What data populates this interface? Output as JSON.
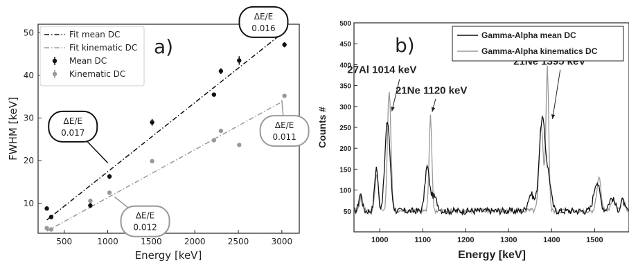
{
  "chart_data": [
    {
      "type": "scatter",
      "panel_label": "a)",
      "xlabel": "Energy [keV]",
      "ylabel": "FWHM [keV]",
      "xlim": [
        200,
        3200
      ],
      "ylim": [
        3,
        52
      ],
      "xticks": [
        500,
        1000,
        1500,
        2000,
        2500,
        3000
      ],
      "yticks": [
        10,
        20,
        30,
        40,
        50
      ],
      "colors": {
        "mean": "#111111",
        "kinematic": "#999999"
      },
      "fits": [
        {
          "name": "Fit mean DC",
          "style": "dashdot",
          "color": "#111111",
          "x": [
            300,
            3000
          ],
          "y": [
            6.1,
            49.8
          ]
        },
        {
          "name": "Fit kinematic DC",
          "style": "dashdot",
          "color": "#999999",
          "x": [
            300,
            3000
          ],
          "y": [
            3.5,
            33.8
          ]
        }
      ],
      "series": [
        {
          "name": "Mean DC",
          "color": "#111111",
          "x": [
            300,
            350,
            800,
            1020,
            1510,
            2220,
            2300,
            2510,
            3030
          ],
          "y": [
            8.8,
            6.8,
            9.5,
            16.3,
            29.0,
            35.5,
            41.0,
            43.5,
            47.2
          ],
          "yerr": [
            0.3,
            0.3,
            0.6,
            0.6,
            0.8,
            0.4,
            0.7,
            1.0,
            0.6
          ]
        },
        {
          "name": "Kinematic DC",
          "color": "#999999",
          "x": [
            300,
            350,
            800,
            1020,
            1510,
            2220,
            2300,
            2510,
            3030
          ],
          "y": [
            4.2,
            3.9,
            10.6,
            12.5,
            19.9,
            24.8,
            27.0,
            23.7,
            35.2
          ],
          "yerr": [
            0.2,
            0.2,
            0.3,
            0.3,
            0.3,
            0.3,
            0.3,
            0.3,
            0.3
          ]
        }
      ],
      "annotations": [
        {
          "line1": "ΔE/E",
          "line2": "0.016",
          "box_x": 2790,
          "box_y": 52.5,
          "arrow_to": [
            3000,
            49.8
          ],
          "border": "#111111"
        },
        {
          "line1": "ΔE/E",
          "line2": "0.017",
          "box_x": 600,
          "box_y": 28.0,
          "arrow_to": [
            1000,
            19.5
          ],
          "border": "#111111"
        },
        {
          "line1": "ΔE/E",
          "line2": "0.011",
          "box_x": 3030,
          "box_y": 27.0,
          "arrow_to": [
            3000,
            34.2
          ],
          "border": "#999999"
        },
        {
          "line1": "ΔE/E",
          "line2": "0.012",
          "box_x": 1430,
          "box_y": 5.8,
          "arrow_to": [
            1080,
            11.5
          ],
          "border": "#999999"
        }
      ]
    },
    {
      "type": "line",
      "panel_label": "b)",
      "xlabel": "Energy [keV]",
      "ylabel": "Counts #",
      "xlim": [
        940,
        1580
      ],
      "ylim": [
        0,
        500
      ],
      "xticks": [
        1000,
        1100,
        1200,
        1300,
        1400,
        1500
      ],
      "yticks": [
        50,
        100,
        150,
        200,
        250,
        300,
        350,
        400,
        450,
        500
      ],
      "baseline": 50,
      "series": [
        {
          "name": "Gamma-Alpha mean DC",
          "color": "#111111",
          "noise": 8,
          "peaks": [
            {
              "x": 955,
              "h": 40,
              "w": 4
            },
            {
              "x": 992,
              "h": 105,
              "w": 4
            },
            {
              "x": 1018,
              "h": 215,
              "w": 6
            },
            {
              "x": 1110,
              "h": 100,
              "w": 5
            },
            {
              "x": 1125,
              "h": 35,
              "w": 8
            },
            {
              "x": 1352,
              "h": 40,
              "w": 7
            },
            {
              "x": 1378,
              "h": 220,
              "w": 7
            },
            {
              "x": 1393,
              "h": 70,
              "w": 6
            },
            {
              "x": 1505,
              "h": 70,
              "w": 7
            },
            {
              "x": 1540,
              "h": 30,
              "w": 7
            },
            {
              "x": 1565,
              "h": 25,
              "w": 4
            }
          ]
        },
        {
          "name": "Gamma-Alpha kinematics DC",
          "color": "#999999",
          "noise": 6,
          "peaks": [
            {
              "x": 957,
              "h": 35,
              "w": 4
            },
            {
              "x": 993,
              "h": 90,
              "w": 4
            },
            {
              "x": 1022,
              "h": 290,
              "w": 4
            },
            {
              "x": 1118,
              "h": 230,
              "w": 3.2
            },
            {
              "x": 1376,
              "h": 200,
              "w": 5
            },
            {
              "x": 1390,
              "h": 345,
              "w": 3.2
            },
            {
              "x": 1510,
              "h": 80,
              "w": 5
            },
            {
              "x": 1545,
              "h": 25,
              "w": 6
            },
            {
              "x": 1565,
              "h": 30,
              "w": 4
            }
          ]
        }
      ],
      "annotations": [
        {
          "text": "27Al 1014 keV",
          "label_x": 1005,
          "label_y": 380,
          "arrow_from": [
            1046,
            365
          ],
          "arrow_to": [
            1028,
            288
          ]
        },
        {
          "text": "21Ne 1120 keV",
          "label_x": 1120,
          "label_y": 330,
          "arrow_from": [
            1130,
            318
          ],
          "arrow_to": [
            1122,
            287
          ]
        },
        {
          "text": "21Ne 1395 keV",
          "label_x": 1395,
          "label_y": 400,
          "arrow_from": [
            1420,
            388
          ],
          "arrow_to": [
            1402,
            270
          ]
        }
      ]
    }
  ]
}
